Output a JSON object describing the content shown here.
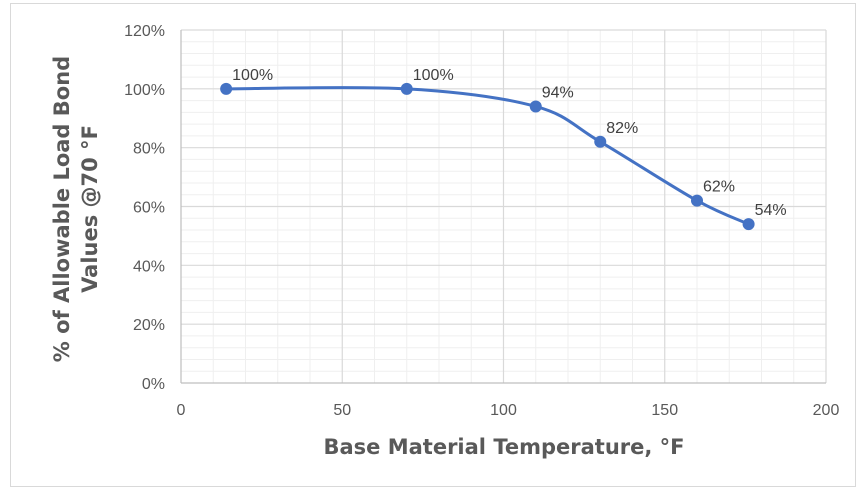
{
  "chart_data": {
    "type": "scatter",
    "title": "",
    "xlabel": "Base Material Temperature, °F",
    "ylabel_lines": [
      "% of Allowable Load Bond",
      "Values @70 °F"
    ],
    "xlim": [
      0,
      200
    ],
    "ylim": [
      0,
      120
    ],
    "x_ticks": [
      0,
      50,
      100,
      150,
      200
    ],
    "y_ticks": [
      0,
      20,
      40,
      60,
      80,
      100,
      120
    ],
    "x_tick_labels": [
      "0",
      "50",
      "100",
      "150",
      "200"
    ],
    "y_tick_labels": [
      "0%",
      "20%",
      "40%",
      "60%",
      "80%",
      "100%",
      "120%"
    ],
    "x_minor_step": 10,
    "y_minor_step": 4,
    "grid": true,
    "legend": "none",
    "line_style": "smooth",
    "series": [
      {
        "x": [
          14,
          70,
          110,
          130,
          160,
          176
        ],
        "y": [
          100,
          100,
          94,
          82,
          62,
          54
        ],
        "data_labels": [
          "100%",
          "100%",
          "94%",
          "82%",
          "62%",
          "54%"
        ]
      }
    ],
    "colors": {
      "series": "#4472c4",
      "grid_major": "#d9d9d9",
      "grid_minor": "#efefef",
      "axis": "#bfbfbf"
    }
  }
}
